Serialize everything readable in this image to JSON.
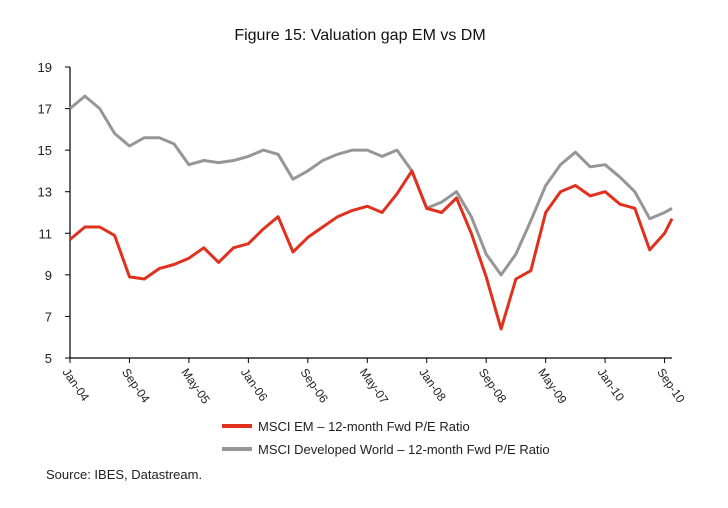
{
  "chart_data": {
    "type": "line",
    "title": "Figure 15: Valuation gap EM vs DM",
    "source": "Source: IBES, Datastream.",
    "ylim": [
      5,
      19
    ],
    "yticks": [
      5,
      7,
      9,
      11,
      13,
      15,
      17,
      19
    ],
    "xrange": [
      "2004-01",
      "2010-10"
    ],
    "xtick_labels": [
      "Jan-04",
      "Sep-04",
      "May-05",
      "Jan-06",
      "Sep-06",
      "May-07",
      "Jan-08",
      "Sep-08",
      "May-09",
      "Jan-10",
      "Sep-10"
    ],
    "xtick_dates": [
      "2004-01",
      "2004-09",
      "2005-05",
      "2006-01",
      "2006-09",
      "2007-05",
      "2008-01",
      "2008-09",
      "2009-05",
      "2010-01",
      "2010-09"
    ],
    "grid": false,
    "legend": "bottom",
    "x": [
      "2004-01",
      "2004-03",
      "2004-05",
      "2004-07",
      "2004-09",
      "2004-11",
      "2005-01",
      "2005-03",
      "2005-05",
      "2005-07",
      "2005-09",
      "2005-11",
      "2006-01",
      "2006-03",
      "2006-05",
      "2006-07",
      "2006-09",
      "2006-11",
      "2007-01",
      "2007-03",
      "2007-05",
      "2007-07",
      "2007-09",
      "2007-11",
      "2008-01",
      "2008-03",
      "2008-05",
      "2008-07",
      "2008-09",
      "2008-11",
      "2009-01",
      "2009-03",
      "2009-05",
      "2009-07",
      "2009-09",
      "2009-11",
      "2010-01",
      "2010-03",
      "2010-05",
      "2010-07",
      "2010-09",
      "2010-10"
    ],
    "series": [
      {
        "name": "MSCI EM – 12-month Fwd P/E Ratio",
        "color": "#e0301e",
        "values": [
          10.7,
          11.3,
          11.3,
          10.9,
          8.9,
          8.8,
          9.3,
          9.5,
          9.8,
          10.3,
          9.6,
          10.3,
          10.5,
          11.2,
          11.8,
          10.1,
          10.8,
          11.3,
          11.8,
          12.1,
          12.3,
          12.0,
          12.9,
          14.0,
          12.2,
          12.0,
          12.7,
          11.0,
          8.9,
          6.4,
          8.8,
          9.2,
          12.0,
          13.0,
          13.3,
          12.8,
          13.0,
          12.4,
          12.2,
          10.2,
          11.0,
          11.7
        ]
      },
      {
        "name": "MSCI Developed World – 12-month Fwd P/E Ratio",
        "color": "#969696",
        "values": [
          17.0,
          17.6,
          17.0,
          15.8,
          15.2,
          15.6,
          15.6,
          15.3,
          14.3,
          14.5,
          14.4,
          14.5,
          14.7,
          15.0,
          14.8,
          13.6,
          14.0,
          14.5,
          14.8,
          15.0,
          15.0,
          14.7,
          15.0,
          14.0,
          12.2,
          12.5,
          13.0,
          11.8,
          10.0,
          9.0,
          10.0,
          11.6,
          13.3,
          14.3,
          14.9,
          14.2,
          14.3,
          13.7,
          13.0,
          11.7,
          12.0,
          12.2
        ]
      }
    ]
  }
}
